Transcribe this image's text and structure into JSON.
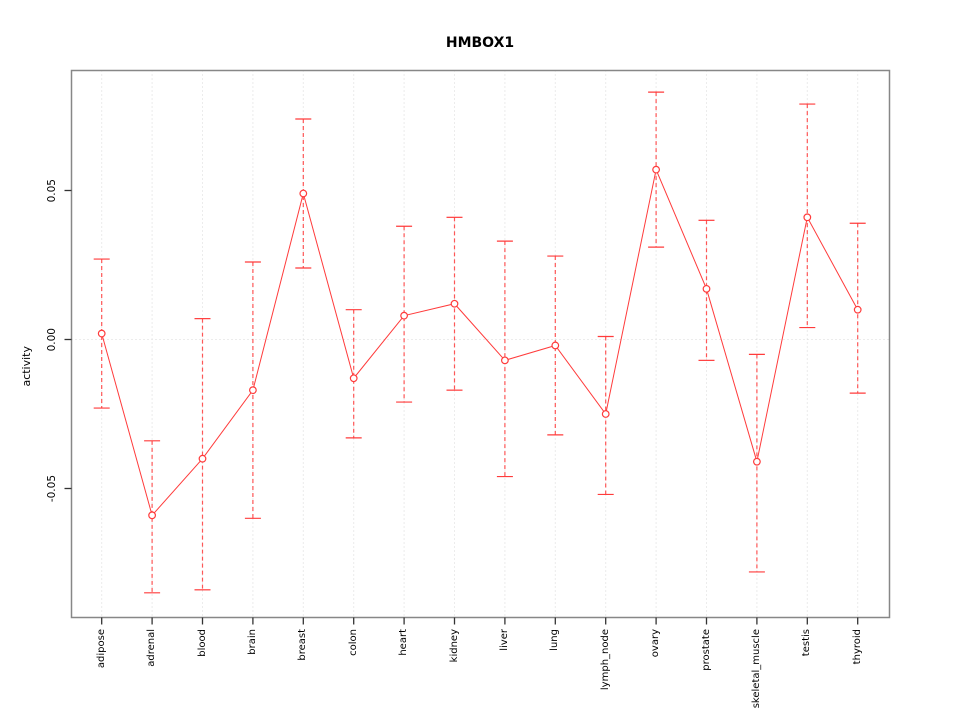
{
  "title": "HMBOX1",
  "y_axis": {
    "label": "activity",
    "tick_labels": [
      "0.05",
      "0.00",
      "-0.05"
    ],
    "tick_values": [
      0.05,
      0.0,
      -0.05
    ]
  },
  "x_axis": {
    "categories": [
      "adipose",
      "adrenal",
      "blood",
      "brain",
      "breast",
      "colon",
      "heart",
      "kidney",
      "liver",
      "lung",
      "lymph_node",
      "ovary",
      "prostate",
      "skeletal_muscle",
      "testis",
      "thyroid"
    ]
  },
  "chart_data": {
    "type": "line",
    "title": "HMBOX1",
    "xlabel": "",
    "ylabel": "activity",
    "categories": [
      "adipose",
      "adrenal",
      "blood",
      "brain",
      "breast",
      "colon",
      "heart",
      "kidney",
      "liver",
      "lung",
      "lymph_node",
      "ovary",
      "prostate",
      "skeletal_muscle",
      "testis",
      "thyroid"
    ],
    "series": [
      {
        "name": "activity",
        "values": [
          0.002,
          -0.059,
          -0.04,
          -0.017,
          0.049,
          -0.013,
          0.008,
          0.012,
          -0.007,
          -0.002,
          -0.025,
          0.057,
          0.017,
          -0.041,
          0.041,
          0.01
        ],
        "error_upper": [
          0.027,
          -0.034,
          0.007,
          0.026,
          0.074,
          0.01,
          0.038,
          0.041,
          0.033,
          0.028,
          0.001,
          0.083,
          0.04,
          -0.005,
          0.079,
          0.039
        ],
        "error_lower": [
          -0.023,
          -0.085,
          -0.084,
          -0.06,
          0.024,
          -0.033,
          -0.021,
          -0.017,
          -0.046,
          -0.032,
          -0.052,
          0.031,
          -0.007,
          -0.078,
          0.004,
          -0.018
        ]
      }
    ],
    "ylim": [
      -0.093,
      0.09
    ],
    "grid": "dotted vertical per category + dotted horizontal at 0",
    "legend": "none",
    "marker": "open-circle",
    "colors": {
      "series": "#ff3b3b",
      "grid": "#d8d8d8",
      "frame": "#878787",
      "ticks": "#333333",
      "text": "#000000",
      "background": "#ffffff"
    }
  }
}
